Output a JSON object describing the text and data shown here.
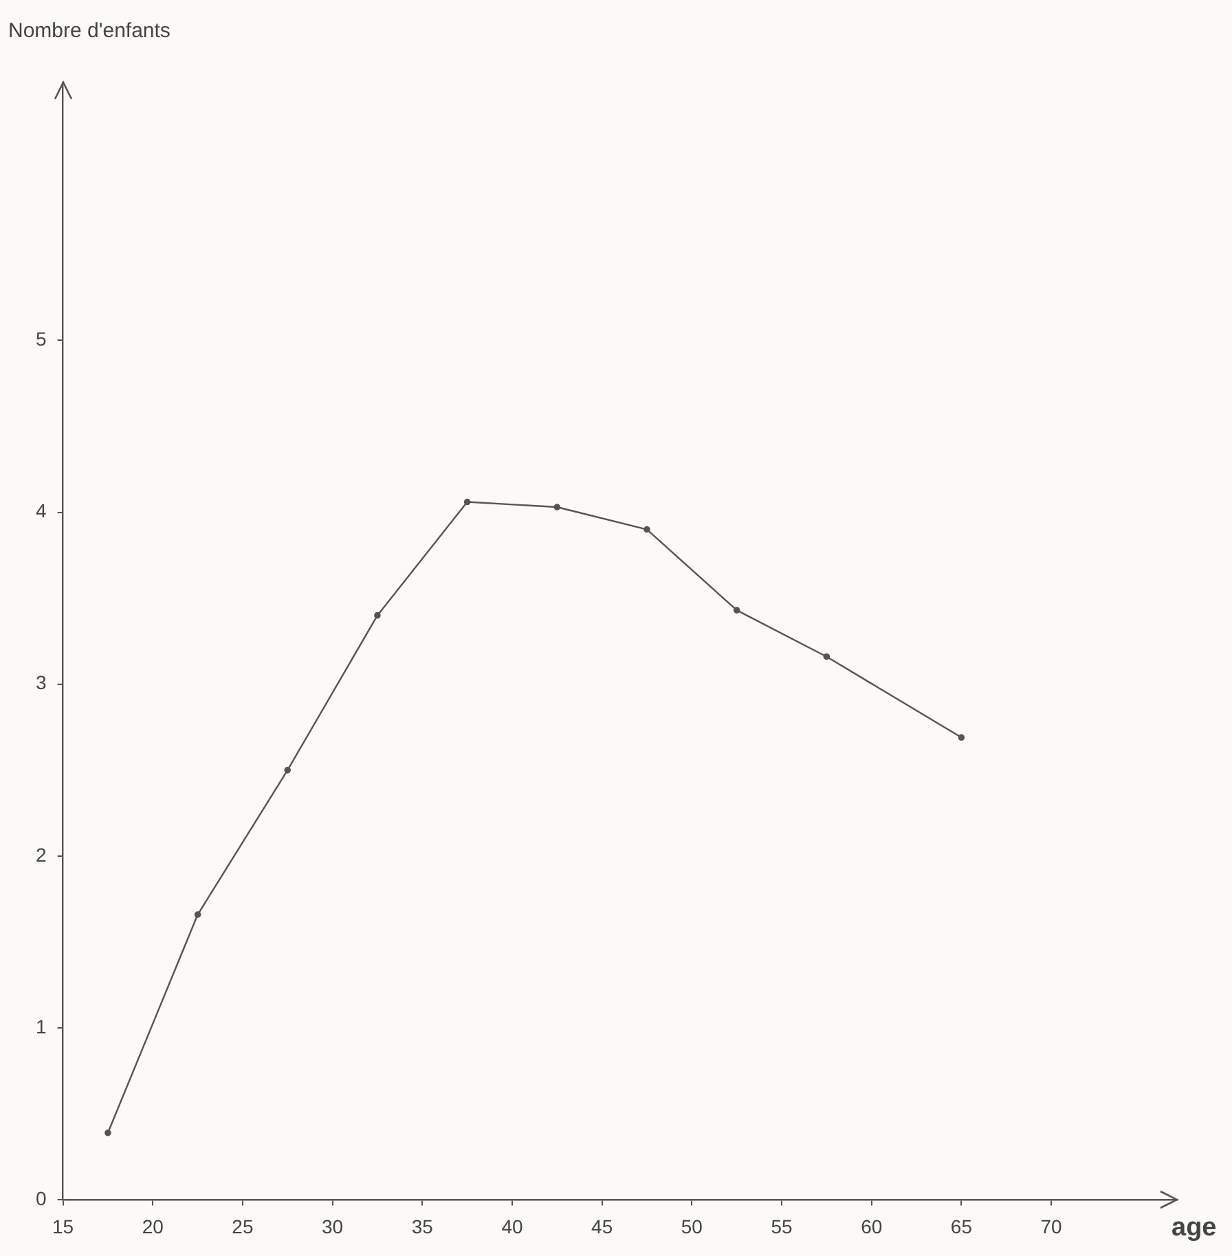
{
  "chart_data": {
    "type": "line",
    "ylabel": "Nombre d'enfants",
    "xlabel": "age",
    "x": [
      17.5,
      22.5,
      27.5,
      32.5,
      37.5,
      42.5,
      47.5,
      52.5,
      57.5,
      65
    ],
    "series": [
      {
        "color": "#555555",
        "values": [
          0.39,
          1.66,
          2.5,
          3.4,
          4.06,
          4.03,
          3.9,
          3.43,
          3.16,
          2.69
        ]
      }
    ],
    "xlim": [
      15,
      77
    ],
    "xticks": [
      15,
      20,
      25,
      30,
      35,
      40,
      45,
      50,
      55,
      60,
      65,
      70
    ],
    "ylim": [
      0,
      6.5
    ],
    "yticks": [
      0,
      1,
      2,
      3,
      4,
      5
    ],
    "grid": false,
    "legend": false,
    "marker": "circle",
    "line_style": "solid"
  }
}
